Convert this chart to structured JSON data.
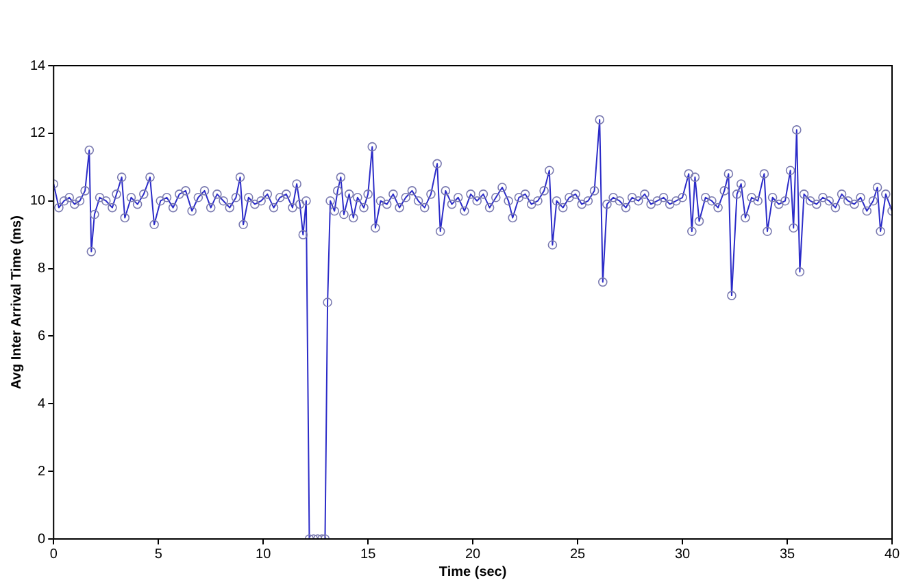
{
  "chart_data": {
    "type": "line",
    "xlabel": "Time (sec)",
    "ylabel": "Avg Inter Arrival Time (ms)",
    "marker": "circle",
    "line_style": "solid",
    "grid": false,
    "legend": false,
    "xlim": [
      0,
      40
    ],
    "xticks": [
      0,
      5,
      10,
      15,
      20,
      25,
      30,
      35,
      40
    ],
    "ylim": [
      0,
      14
    ],
    "yticks": [
      0,
      2,
      4,
      6,
      8,
      10,
      12,
      14
    ],
    "series": [
      {
        "color": "#2b2bc8",
        "x": [
          0,
          0.25,
          0.5,
          0.75,
          1.0,
          1.25,
          1.5,
          1.7,
          1.8,
          1.95,
          2.2,
          2.5,
          2.8,
          3.0,
          3.25,
          3.4,
          3.7,
          4.0,
          4.3,
          4.6,
          4.8,
          5.1,
          5.4,
          5.7,
          6.0,
          6.3,
          6.6,
          6.9,
          7.2,
          7.5,
          7.8,
          8.1,
          8.4,
          8.7,
          8.9,
          9.05,
          9.3,
          9.6,
          9.9,
          10.2,
          10.5,
          10.8,
          11.1,
          11.4,
          11.6,
          11.75,
          11.9,
          12.05,
          12.2,
          12.4,
          12.6,
          12.8,
          12.95,
          13.07,
          13.2,
          13.4,
          13.55,
          13.7,
          13.85,
          14.1,
          14.3,
          14.5,
          14.8,
          15.0,
          15.2,
          15.35,
          15.6,
          15.9,
          16.2,
          16.5,
          16.8,
          17.1,
          17.4,
          17.7,
          18.0,
          18.3,
          18.45,
          18.7,
          19.0,
          19.3,
          19.6,
          19.9,
          20.2,
          20.5,
          20.8,
          21.1,
          21.4,
          21.7,
          21.9,
          22.2,
          22.5,
          22.8,
          23.1,
          23.4,
          23.65,
          23.8,
          24.0,
          24.3,
          24.6,
          24.9,
          25.2,
          25.5,
          25.8,
          26.05,
          26.2,
          26.4,
          26.7,
          27.0,
          27.3,
          27.6,
          27.9,
          28.2,
          28.5,
          28.8,
          29.1,
          29.4,
          29.7,
          30.0,
          30.3,
          30.45,
          30.6,
          30.8,
          31.1,
          31.4,
          31.7,
          32.0,
          32.2,
          32.35,
          32.6,
          32.8,
          33.0,
          33.3,
          33.6,
          33.9,
          34.05,
          34.3,
          34.6,
          34.9,
          35.15,
          35.3,
          35.45,
          35.6,
          35.8,
          36.1,
          36.4,
          36.7,
          37.0,
          37.3,
          37.6,
          37.9,
          38.2,
          38.5,
          38.8,
          39.1,
          39.3,
          39.45,
          39.7,
          40.0
        ],
        "values": [
          10.5,
          9.8,
          10.0,
          10.1,
          9.9,
          10.0,
          10.3,
          11.5,
          8.5,
          9.6,
          10.1,
          10.0,
          9.8,
          10.2,
          10.7,
          9.5,
          10.1,
          9.9,
          10.2,
          10.7,
          9.3,
          10.0,
          10.1,
          9.8,
          10.2,
          10.3,
          9.7,
          10.1,
          10.3,
          9.8,
          10.2,
          10.0,
          9.8,
          10.1,
          10.7,
          9.3,
          10.1,
          9.9,
          10.0,
          10.2,
          9.8,
          10.1,
          10.2,
          9.8,
          10.5,
          9.9,
          9.0,
          10.0,
          0,
          0,
          0,
          0,
          0,
          7.0,
          10.0,
          9.7,
          10.3,
          10.7,
          9.6,
          10.2,
          9.5,
          10.1,
          9.8,
          10.2,
          11.6,
          9.2,
          10.0,
          9.9,
          10.2,
          9.8,
          10.1,
          10.3,
          10.0,
          9.8,
          10.2,
          11.1,
          9.1,
          10.3,
          9.9,
          10.1,
          9.7,
          10.2,
          10.0,
          10.2,
          9.8,
          10.1,
          10.4,
          10.0,
          9.5,
          10.1,
          10.2,
          9.9,
          10.0,
          10.3,
          10.9,
          8.7,
          10.0,
          9.8,
          10.1,
          10.2,
          9.9,
          10.0,
          10.3,
          12.4,
          7.6,
          9.9,
          10.1,
          10.0,
          9.8,
          10.1,
          10.0,
          10.2,
          9.9,
          10.0,
          10.1,
          9.9,
          10.0,
          10.1,
          10.8,
          9.1,
          10.7,
          9.4,
          10.1,
          10.0,
          9.8,
          10.3,
          10.8,
          7.2,
          10.2,
          10.5,
          9.5,
          10.1,
          10.0,
          10.8,
          9.1,
          10.1,
          9.9,
          10.0,
          10.9,
          9.2,
          12.1,
          7.9,
          10.2,
          10.0,
          9.9,
          10.1,
          10.0,
          9.8,
          10.2,
          10.0,
          9.9,
          10.1,
          9.7,
          10.0,
          10.4,
          9.1,
          10.2,
          9.7
        ]
      }
    ]
  }
}
